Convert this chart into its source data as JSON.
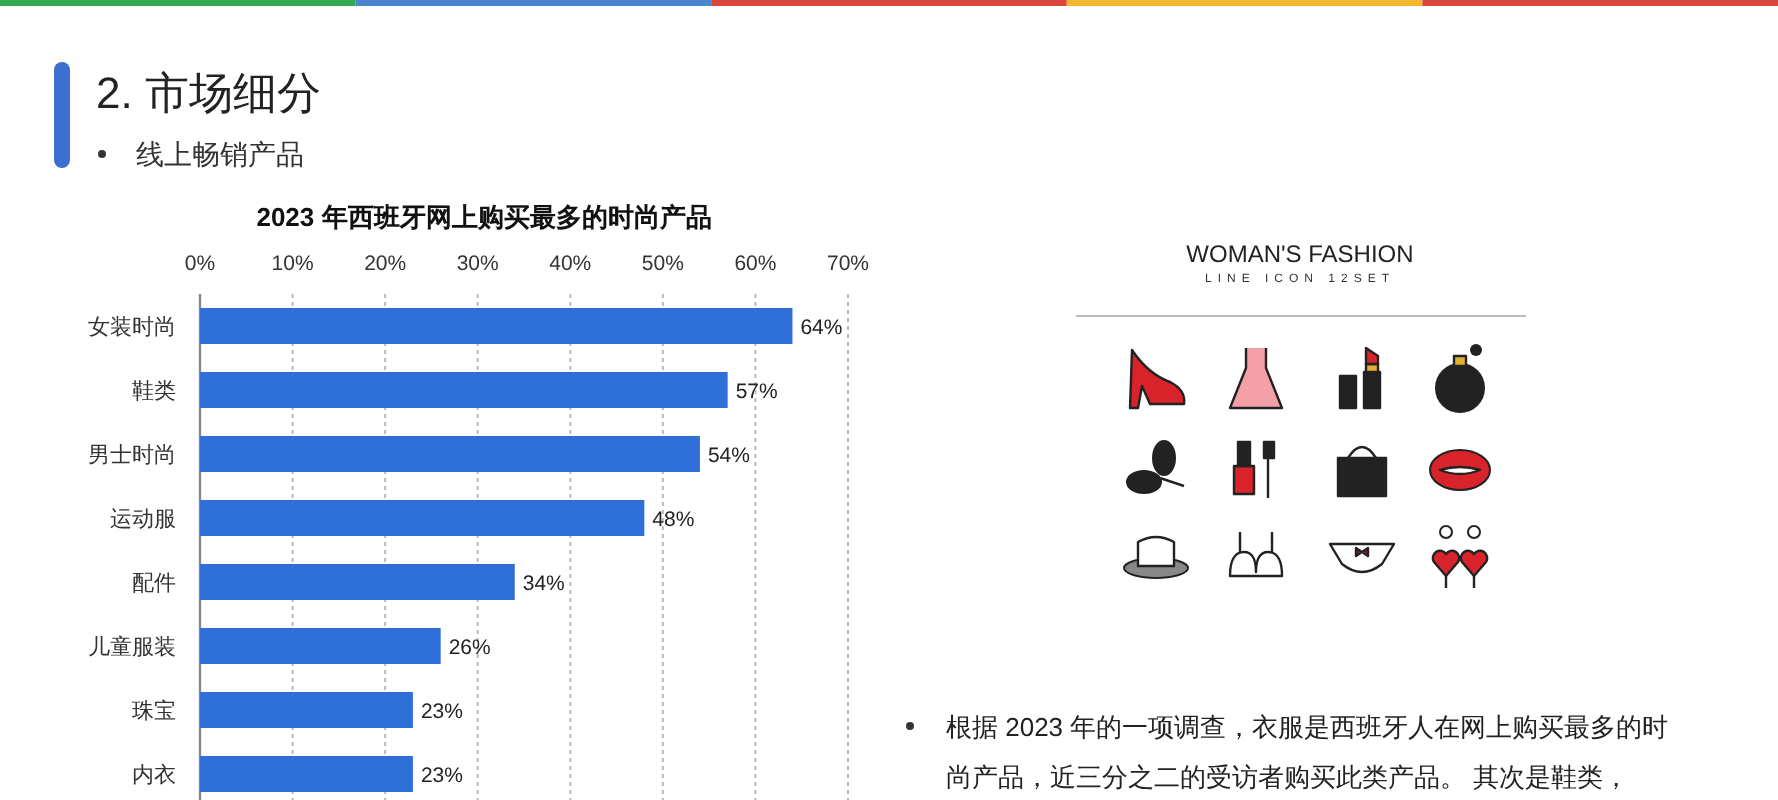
{
  "chart_data": {
    "type": "bar",
    "orientation": "horizontal",
    "title": "2023 年西班牙网上购买最多的时尚产品",
    "categories": [
      "女装时尚",
      "鞋类",
      "男士时尚",
      "运动服",
      "配件",
      "儿童服装",
      "珠宝",
      "内衣"
    ],
    "values": [
      64,
      57,
      54,
      48,
      34,
      26,
      23,
      23
    ],
    "value_labels": [
      "64%",
      "57%",
      "54%",
      "48%",
      "34%",
      "26%",
      "23%",
      "23%"
    ],
    "color": "#2e6fd8",
    "xlim": [
      0,
      70
    ],
    "xticks": [
      {
        "value": 0,
        "label": "0%"
      },
      {
        "value": 10,
        "label": "10%"
      },
      {
        "value": 20,
        "label": "20%"
      },
      {
        "value": 30,
        "label": "30%"
      },
      {
        "value": 40,
        "label": "40%"
      },
      {
        "value": 50,
        "label": "50%"
      },
      {
        "value": 60,
        "label": "60%"
      },
      {
        "value": 70,
        "label": "70%"
      }
    ],
    "grid": "x",
    "annotations": [
      "2. 市场细分",
      "线上畅销产品",
      "WOMAN'S FASHION",
      "LINE ICON 12SET",
      "根据 2023 年的一项调查，衣服是西班牙人在网上购买最多的时尚产品，近三分之二的受访者购买此类产品。 其次是鞋类，"
    ]
  }
}
